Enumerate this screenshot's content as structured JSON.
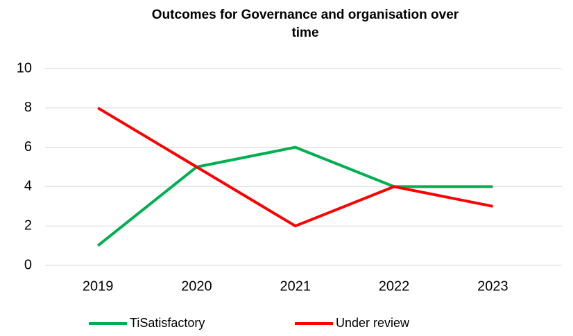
{
  "chart_data": {
    "type": "line",
    "title": "Outcomes for Governance and organisation over time",
    "categories": [
      "2019",
      "2020",
      "2021",
      "2022",
      "2023"
    ],
    "series": [
      {
        "name": "TiSatisfactory",
        "color": "#00b050",
        "values": [
          1,
          5,
          6,
          4,
          4
        ]
      },
      {
        "name": "Under review",
        "color": "#ff0000",
        "values": [
          8,
          5,
          2,
          4,
          3
        ]
      }
    ],
    "ylim": [
      0,
      10
    ],
    "yticks": [
      0,
      2,
      4,
      6,
      8,
      10
    ],
    "grid": true,
    "legend": "bottom"
  }
}
